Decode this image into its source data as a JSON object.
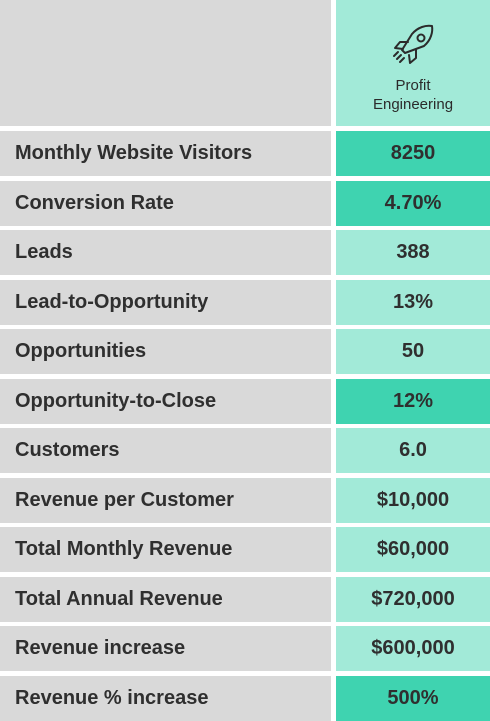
{
  "header": {
    "title_line1": "Profit",
    "title_line2": "Engineering",
    "icon": "rocket-icon"
  },
  "colors": {
    "label_bg": "#d9d9d9",
    "value_light": "#a2ead8",
    "value_dark": "#3fd3b0"
  },
  "rows": [
    {
      "label": "Monthly Website Visitors",
      "value": "8250",
      "highlight": true
    },
    {
      "label": "Conversion Rate",
      "value": "4.70%",
      "highlight": true
    },
    {
      "label": "Leads",
      "value": "388",
      "highlight": false
    },
    {
      "label": "Lead-to-Opportunity",
      "value": "13%",
      "highlight": false
    },
    {
      "label": "Opportunities",
      "value": "50",
      "highlight": false
    },
    {
      "label": "Opportunity-to-Close",
      "value": "12%",
      "highlight": true
    },
    {
      "label": "Customers",
      "value": "6.0",
      "highlight": false
    },
    {
      "label": "Revenue per Customer",
      "value": "$10,000",
      "highlight": false
    },
    {
      "label": "Total Monthly Revenue",
      "value": "$60,000",
      "highlight": false
    },
    {
      "label": "Total Annual Revenue",
      "value": "$720,000",
      "highlight": false
    },
    {
      "label": "Revenue increase",
      "value": "$600,000",
      "highlight": false
    },
    {
      "label": "Revenue % increase",
      "value": "500%",
      "highlight": true
    }
  ]
}
